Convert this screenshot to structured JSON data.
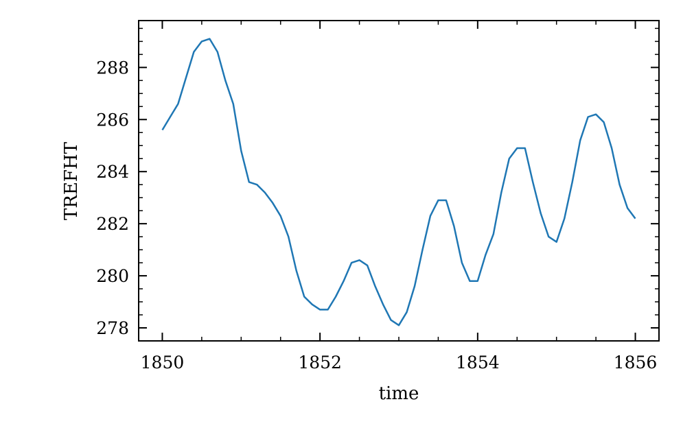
{
  "chart_data": {
    "type": "line",
    "xlabel": "time",
    "ylabel": "TREFHT",
    "xlim": [
      1849.7,
      1856.3
    ],
    "ylim": [
      277.5,
      289.8
    ],
    "x_ticks": [
      1850,
      1852,
      1854,
      1856
    ],
    "x_tick_labels": [
      "1850",
      "1852",
      "1854",
      "1856"
    ],
    "y_ticks": [
      278,
      280,
      282,
      284,
      286,
      288
    ],
    "y_tick_labels": [
      "278",
      "280",
      "282",
      "284",
      "286",
      "288"
    ],
    "grid": false,
    "line_color": "#1f77b4",
    "series": [
      {
        "x": [
          1850.0,
          1850.1,
          1850.2,
          1850.3,
          1850.4,
          1850.5,
          1850.6,
          1850.7,
          1850.8,
          1850.9,
          1851.0,
          1851.1,
          1851.2,
          1851.3,
          1851.4,
          1851.5,
          1851.6,
          1851.7,
          1851.8,
          1851.9,
          1852.0,
          1852.1,
          1852.2,
          1852.3,
          1852.4,
          1852.5,
          1852.6,
          1852.7,
          1852.8,
          1852.9,
          1853.0,
          1853.1,
          1853.2,
          1853.3,
          1853.4,
          1853.5,
          1853.6,
          1853.7,
          1853.8,
          1853.9,
          1854.0,
          1854.1,
          1854.2,
          1854.3,
          1854.4,
          1854.5,
          1854.6,
          1854.7,
          1854.8,
          1854.9,
          1855.0,
          1855.1,
          1855.2,
          1855.3,
          1855.4,
          1855.5,
          1855.6,
          1855.7,
          1855.8,
          1855.9,
          1856.0
        ],
        "y": [
          285.6,
          286.1,
          286.6,
          287.6,
          288.6,
          289.0,
          289.1,
          288.6,
          287.5,
          286.6,
          284.8,
          283.6,
          283.5,
          283.2,
          282.8,
          282.3,
          281.5,
          280.2,
          279.2,
          278.9,
          278.7,
          278.7,
          279.2,
          279.8,
          280.5,
          280.6,
          280.4,
          279.6,
          278.9,
          278.3,
          278.1,
          278.6,
          279.6,
          281.0,
          282.3,
          282.9,
          282.9,
          281.9,
          280.5,
          279.8,
          279.8,
          280.8,
          281.6,
          283.2,
          284.5,
          284.9,
          284.9,
          283.6,
          282.4,
          281.5,
          281.3,
          282.2,
          283.6,
          285.2,
          286.1,
          286.2,
          285.9,
          284.9,
          283.5,
          282.6,
          282.2
        ]
      }
    ]
  }
}
